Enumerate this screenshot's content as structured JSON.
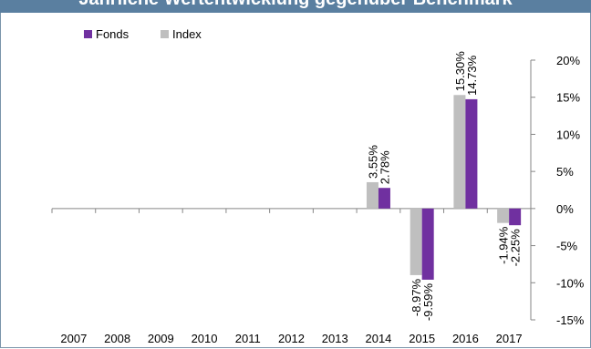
{
  "header": {
    "title": "Jährliche Wertentwicklung gegenüber Benchmark"
  },
  "colors": {
    "fonds": "#7030a0",
    "index": "#bfbfbf",
    "header_bg": "#5a7fa0"
  },
  "chart_data": {
    "type": "bar",
    "title": "",
    "categories": [
      "2007",
      "2008",
      "2009",
      "2010",
      "2011",
      "2012",
      "2013",
      "2014",
      "2015",
      "2016",
      "2017"
    ],
    "series": [
      {
        "name": "Index",
        "color": "#bfbfbf",
        "values": [
          null,
          null,
          null,
          null,
          null,
          null,
          null,
          3.55,
          -8.97,
          15.3,
          -1.94
        ],
        "labels": [
          "",
          "",
          "",
          "",
          "",
          "",
          "",
          "3.55%",
          "-8.97%",
          "15.30%",
          "-1.94%"
        ]
      },
      {
        "name": "Fonds",
        "color": "#7030a0",
        "values": [
          null,
          null,
          null,
          null,
          null,
          null,
          null,
          2.78,
          -9.59,
          14.73,
          -2.25
        ],
        "labels": [
          "",
          "",
          "",
          "",
          "",
          "",
          "",
          "2.78%",
          "-9.59%",
          "14.73%",
          "-2.25%"
        ]
      }
    ],
    "legend": {
      "position": "top-left",
      "entries": [
        "Fonds",
        "Index"
      ]
    },
    "y_axis": {
      "position": "right",
      "ylim": [
        -15,
        20
      ],
      "ticks": [
        20,
        15,
        10,
        5,
        0,
        -5,
        -10,
        -15
      ],
      "tick_labels": [
        "20%",
        "15%",
        "10%",
        "5%",
        "0%",
        "-5%",
        "-10%",
        "-15%"
      ]
    },
    "grid": false
  }
}
